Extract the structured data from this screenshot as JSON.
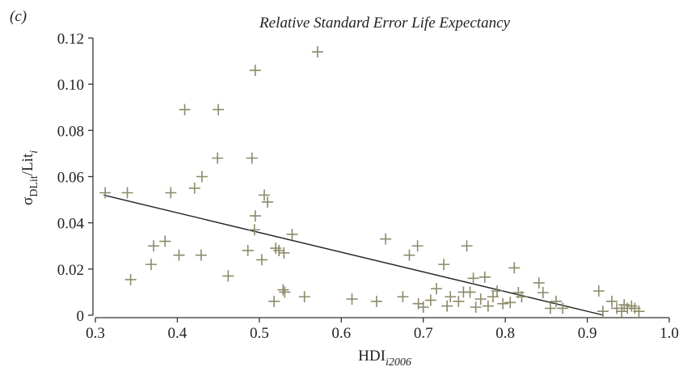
{
  "chart_data": {
    "type": "scatter",
    "panel_label": "(c)",
    "title": "Relative Standard Error Life Expectancy",
    "xlabel_parts": [
      "HDI",
      "i2006"
    ],
    "ylabel_parts": [
      "σ",
      "DLit",
      "/Lit",
      "i"
    ],
    "color": "#8c8a6a",
    "line_color": "#222222",
    "xlim": [
      0.3,
      1.0
    ],
    "ylim": [
      0,
      0.12
    ],
    "xticks": [
      0.3,
      0.4,
      0.5,
      0.6,
      0.7,
      0.8,
      0.9,
      {
        "value": 1.0,
        "label": "1.0"
      }
    ],
    "yticks": [
      0,
      0.02,
      0.04,
      0.06,
      0.08,
      {
        "value": 0.1,
        "label": "0.10"
      },
      0.12
    ],
    "x": [
      0.312,
      0.339,
      0.343,
      0.368,
      0.371,
      0.385,
      0.392,
      0.402,
      0.409,
      0.421,
      0.43,
      0.429,
      0.45,
      0.449,
      0.462,
      0.486,
      0.491,
      0.495,
      0.495,
      0.494,
      0.503,
      0.506,
      0.51,
      0.518,
      0.52,
      0.524,
      0.529,
      0.53,
      0.531,
      0.54,
      0.555,
      0.571,
      0.613,
      0.643,
      0.654,
      0.675,
      0.683,
      0.693,
      0.694,
      0.7,
      0.709,
      0.716,
      0.725,
      0.729,
      0.733,
      0.743,
      0.749,
      0.753,
      0.757,
      0.761,
      0.764,
      0.77,
      0.775,
      0.779,
      0.785,
      0.79,
      0.797,
      0.806,
      0.811,
      0.816,
      0.82,
      0.841,
      0.846,
      0.855,
      0.862,
      0.87,
      0.914,
      0.93,
      0.936,
      0.942,
      0.945,
      0.949,
      0.954,
      0.958,
      0.963,
      0.919
    ],
    "values": [
      0.053,
      0.053,
      0.0154,
      0.022,
      0.03,
      0.032,
      0.053,
      0.026,
      0.089,
      0.055,
      0.06,
      0.026,
      0.089,
      0.068,
      0.017,
      0.028,
      0.068,
      0.106,
      0.043,
      0.037,
      0.024,
      0.052,
      0.049,
      0.006,
      0.029,
      0.028,
      0.011,
      0.027,
      0.01,
      0.035,
      0.008,
      0.114,
      0.007,
      0.006,
      0.033,
      0.008,
      0.026,
      0.03,
      0.005,
      0.0035,
      0.0065,
      0.0115,
      0.022,
      0.004,
      0.008,
      0.006,
      0.01,
      0.03,
      0.01,
      0.016,
      0.0035,
      0.007,
      0.0165,
      0.004,
      0.008,
      0.0105,
      0.005,
      0.0055,
      0.0205,
      0.0098,
      0.008,
      0.014,
      0.0098,
      0.003,
      0.006,
      0.003,
      0.0105,
      0.006,
      0.003,
      0.0017,
      0.0045,
      0.003,
      0.004,
      0.003,
      0.0017,
      0.0017
    ],
    "trend_line": {
      "x": [
        0.31,
        0.92
      ],
      "y": [
        0.052,
        0
      ]
    }
  }
}
